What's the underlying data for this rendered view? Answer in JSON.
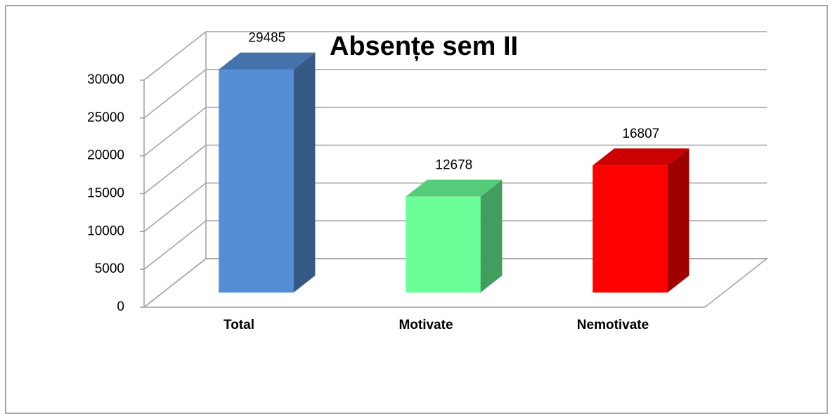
{
  "chart_data": {
    "type": "bar3d",
    "title": "Absențe sem II",
    "categories": [
      "Total",
      "Motivate",
      "Nemotivate"
    ],
    "values": [
      29485,
      12678,
      16807
    ],
    "colors": [
      "#558ed5",
      "#6bff99",
      "#ff0000"
    ],
    "ylim": [
      0,
      30000
    ],
    "yticks": [
      0,
      5000,
      10000,
      15000,
      20000,
      25000,
      30000
    ],
    "grid": true
  }
}
